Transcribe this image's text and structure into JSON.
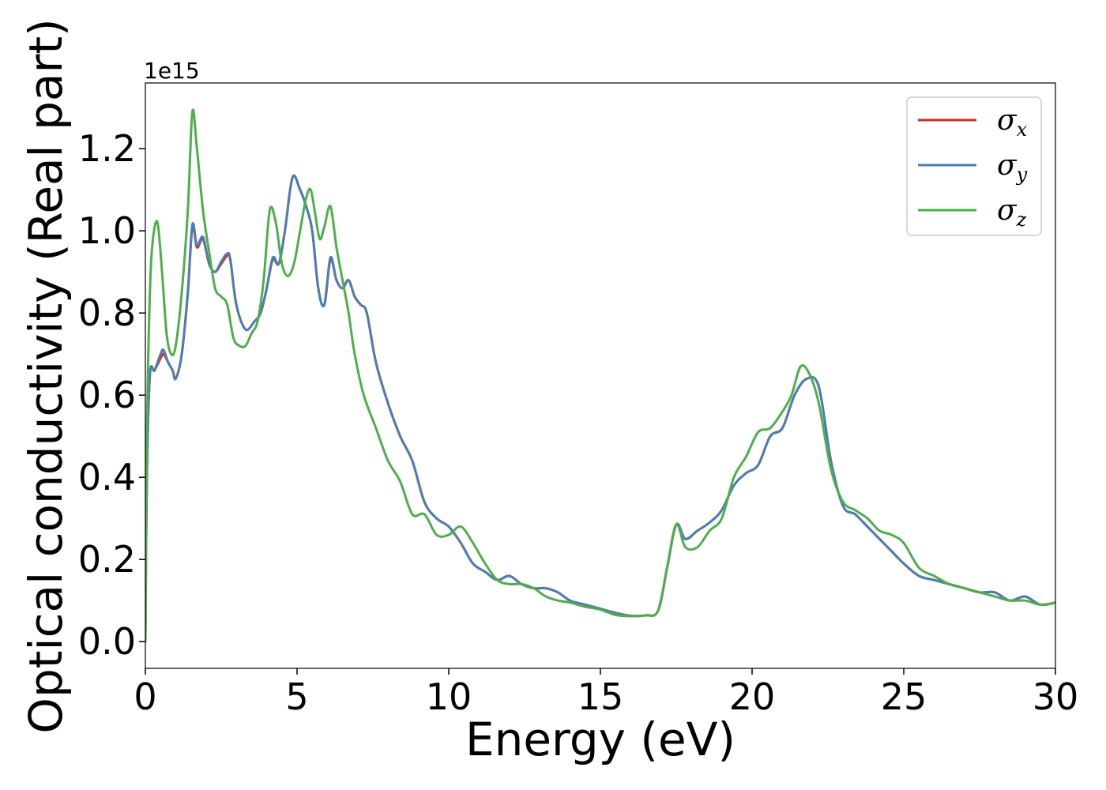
{
  "chart_data": {
    "type": "line",
    "title": "",
    "xlabel": "Energy (eV)",
    "ylabel": "Optical conductivity (Real part)",
    "y_offset_label": "1e15",
    "xlim": [
      0,
      30
    ],
    "ylim": [
      -0.065,
      1.36
    ],
    "y_unit_multiplier": 1000000000000000.0,
    "xticks": [
      0,
      5,
      10,
      15,
      20,
      25,
      30
    ],
    "xtick_labels": [
      "0",
      "5",
      "10",
      "15",
      "20",
      "25",
      "30"
    ],
    "yticks": [
      0.0,
      0.2,
      0.4,
      0.6,
      0.8,
      1.0,
      1.2
    ],
    "ytick_labels": [
      "0.0",
      "0.2",
      "0.4",
      "0.6",
      "0.8",
      "1.0",
      "1.2"
    ],
    "grid": false,
    "legend": {
      "placement": "top-right",
      "entries": [
        {
          "symbol": "σ",
          "subscript": "x",
          "color": "#d62728"
        },
        {
          "symbol": "σ",
          "subscript": "y",
          "color": "#4a7fb5"
        },
        {
          "symbol": "σ",
          "subscript": "z",
          "color": "#4daf4a"
        }
      ]
    },
    "series": [
      {
        "key": "sigma_x",
        "color": "#d62728",
        "x": [
          0,
          0.05,
          0.15,
          0.3,
          0.5,
          0.6,
          0.75,
          0.9,
          1.0,
          1.2,
          1.4,
          1.55,
          1.7,
          1.9,
          2.1,
          2.3,
          2.5,
          2.7,
          2.8,
          3.0,
          3.3,
          3.6,
          3.8,
          4.0,
          4.2,
          4.4,
          4.6,
          4.85,
          5.1,
          5.3,
          5.5,
          5.7,
          5.9,
          6.1,
          6.3,
          6.5,
          6.7,
          6.9,
          7.1,
          7.3,
          7.6,
          8.0,
          8.4,
          8.8,
          9.2,
          9.6,
          10.0,
          10.4,
          10.8,
          11.2,
          11.6,
          12.0,
          12.4,
          12.8,
          13.2,
          13.6,
          14.0,
          14.5,
          15.0,
          15.5,
          16.0,
          16.5,
          16.9,
          17.2,
          17.5,
          17.8,
          18.2,
          18.6,
          19.0,
          19.4,
          19.8,
          20.2,
          20.6,
          21.0,
          21.4,
          21.8,
          22.2,
          22.6,
          23.0,
          23.4,
          23.8,
          24.2,
          24.6,
          25.0,
          25.5,
          26.0,
          26.5,
          27.0,
          27.5,
          28.0,
          28.5,
          29.0,
          29.5,
          30.0
        ],
        "y": [
          0.0,
          0.4,
          0.65,
          0.66,
          0.69,
          0.7,
          0.68,
          0.66,
          0.64,
          0.7,
          0.85,
          1.01,
          0.96,
          0.98,
          0.92,
          0.9,
          0.92,
          0.94,
          0.93,
          0.82,
          0.76,
          0.78,
          0.8,
          0.86,
          0.93,
          0.92,
          1.0,
          1.13,
          1.1,
          1.06,
          1.0,
          0.86,
          0.82,
          0.93,
          0.88,
          0.86,
          0.88,
          0.84,
          0.82,
          0.8,
          0.68,
          0.58,
          0.5,
          0.44,
          0.34,
          0.3,
          0.28,
          0.24,
          0.19,
          0.17,
          0.15,
          0.16,
          0.14,
          0.13,
          0.13,
          0.12,
          0.1,
          0.09,
          0.08,
          0.07,
          0.063,
          0.064,
          0.075,
          0.18,
          0.285,
          0.25,
          0.27,
          0.29,
          0.32,
          0.38,
          0.41,
          0.43,
          0.5,
          0.52,
          0.6,
          0.64,
          0.62,
          0.44,
          0.33,
          0.31,
          0.28,
          0.25,
          0.22,
          0.19,
          0.16,
          0.15,
          0.14,
          0.13,
          0.12,
          0.12,
          0.1,
          0.11,
          0.09,
          0.095
        ]
      },
      {
        "key": "sigma_y",
        "color": "#4a7fb5",
        "x": [
          0,
          0.05,
          0.15,
          0.3,
          0.5,
          0.6,
          0.75,
          0.9,
          1.0,
          1.2,
          1.4,
          1.55,
          1.7,
          1.9,
          2.1,
          2.3,
          2.5,
          2.7,
          2.8,
          3.0,
          3.3,
          3.6,
          3.8,
          4.0,
          4.2,
          4.4,
          4.6,
          4.85,
          5.1,
          5.3,
          5.5,
          5.7,
          5.9,
          6.1,
          6.3,
          6.5,
          6.7,
          6.9,
          7.1,
          7.3,
          7.6,
          8.0,
          8.4,
          8.8,
          9.2,
          9.6,
          10.0,
          10.4,
          10.8,
          11.2,
          11.6,
          12.0,
          12.4,
          12.8,
          13.2,
          13.6,
          14.0,
          14.5,
          15.0,
          15.5,
          16.0,
          16.5,
          16.9,
          17.2,
          17.5,
          17.8,
          18.2,
          18.6,
          19.0,
          19.4,
          19.8,
          20.2,
          20.6,
          21.0,
          21.4,
          21.8,
          22.2,
          22.6,
          23.0,
          23.4,
          23.8,
          24.2,
          24.6,
          25.0,
          25.5,
          26.0,
          26.5,
          27.0,
          27.5,
          28.0,
          28.5,
          29.0,
          29.5,
          30.0
        ],
        "y": [
          0.0,
          0.4,
          0.65,
          0.66,
          0.7,
          0.71,
          0.68,
          0.66,
          0.64,
          0.7,
          0.85,
          1.015,
          0.965,
          0.985,
          0.92,
          0.9,
          0.925,
          0.945,
          0.93,
          0.82,
          0.76,
          0.78,
          0.8,
          0.86,
          0.935,
          0.92,
          1.0,
          1.13,
          1.1,
          1.06,
          1.0,
          0.86,
          0.82,
          0.935,
          0.88,
          0.86,
          0.88,
          0.84,
          0.82,
          0.8,
          0.68,
          0.58,
          0.5,
          0.44,
          0.34,
          0.3,
          0.28,
          0.24,
          0.19,
          0.17,
          0.15,
          0.16,
          0.14,
          0.13,
          0.13,
          0.12,
          0.1,
          0.09,
          0.08,
          0.07,
          0.063,
          0.064,
          0.075,
          0.18,
          0.285,
          0.25,
          0.27,
          0.29,
          0.32,
          0.38,
          0.41,
          0.43,
          0.5,
          0.52,
          0.6,
          0.64,
          0.62,
          0.44,
          0.33,
          0.31,
          0.28,
          0.25,
          0.22,
          0.19,
          0.16,
          0.15,
          0.14,
          0.13,
          0.12,
          0.12,
          0.1,
          0.11,
          0.09,
          0.095
        ]
      },
      {
        "key": "sigma_z",
        "color": "#4daf4a",
        "x": [
          0,
          0.05,
          0.15,
          0.25,
          0.4,
          0.55,
          0.7,
          0.85,
          1.0,
          1.2,
          1.4,
          1.55,
          1.7,
          1.9,
          2.1,
          2.3,
          2.5,
          2.7,
          2.9,
          3.1,
          3.3,
          3.5,
          3.7,
          3.9,
          4.1,
          4.3,
          4.5,
          4.7,
          4.9,
          5.1,
          5.3,
          5.45,
          5.6,
          5.75,
          5.9,
          6.1,
          6.3,
          6.5,
          6.7,
          6.9,
          7.2,
          7.6,
          8.0,
          8.4,
          8.8,
          9.2,
          9.6,
          10.0,
          10.4,
          10.8,
          11.2,
          11.6,
          12.0,
          12.4,
          12.8,
          13.2,
          13.6,
          14.0,
          14.5,
          15.0,
          15.5,
          16.0,
          16.5,
          16.9,
          17.2,
          17.5,
          17.8,
          18.2,
          18.6,
          19.0,
          19.4,
          19.8,
          20.2,
          20.6,
          21.0,
          21.3,
          21.6,
          21.9,
          22.2,
          22.6,
          23.0,
          23.4,
          23.8,
          24.2,
          24.6,
          25.0,
          25.5,
          26.0,
          26.5,
          27.0,
          27.5,
          28.0,
          28.5,
          29.0,
          29.5,
          30.0
        ],
        "y": [
          0.0,
          0.5,
          0.85,
          0.98,
          1.02,
          0.9,
          0.75,
          0.7,
          0.72,
          0.85,
          1.05,
          1.29,
          1.2,
          1.05,
          0.95,
          0.86,
          0.84,
          0.82,
          0.74,
          0.72,
          0.72,
          0.75,
          0.78,
          0.88,
          1.05,
          1.02,
          0.92,
          0.89,
          0.92,
          1.0,
          1.08,
          1.1,
          1.04,
          0.98,
          1.01,
          1.06,
          0.96,
          0.88,
          0.8,
          0.7,
          0.6,
          0.52,
          0.44,
          0.39,
          0.31,
          0.31,
          0.26,
          0.26,
          0.28,
          0.24,
          0.19,
          0.15,
          0.14,
          0.14,
          0.13,
          0.11,
          0.1,
          0.095,
          0.085,
          0.078,
          0.065,
          0.062,
          0.064,
          0.075,
          0.18,
          0.285,
          0.23,
          0.23,
          0.27,
          0.3,
          0.4,
          0.45,
          0.51,
          0.52,
          0.56,
          0.6,
          0.67,
          0.65,
          0.58,
          0.42,
          0.34,
          0.32,
          0.3,
          0.27,
          0.26,
          0.24,
          0.18,
          0.16,
          0.14,
          0.13,
          0.12,
          0.11,
          0.1,
          0.1,
          0.09,
          0.095
        ]
      }
    ]
  }
}
